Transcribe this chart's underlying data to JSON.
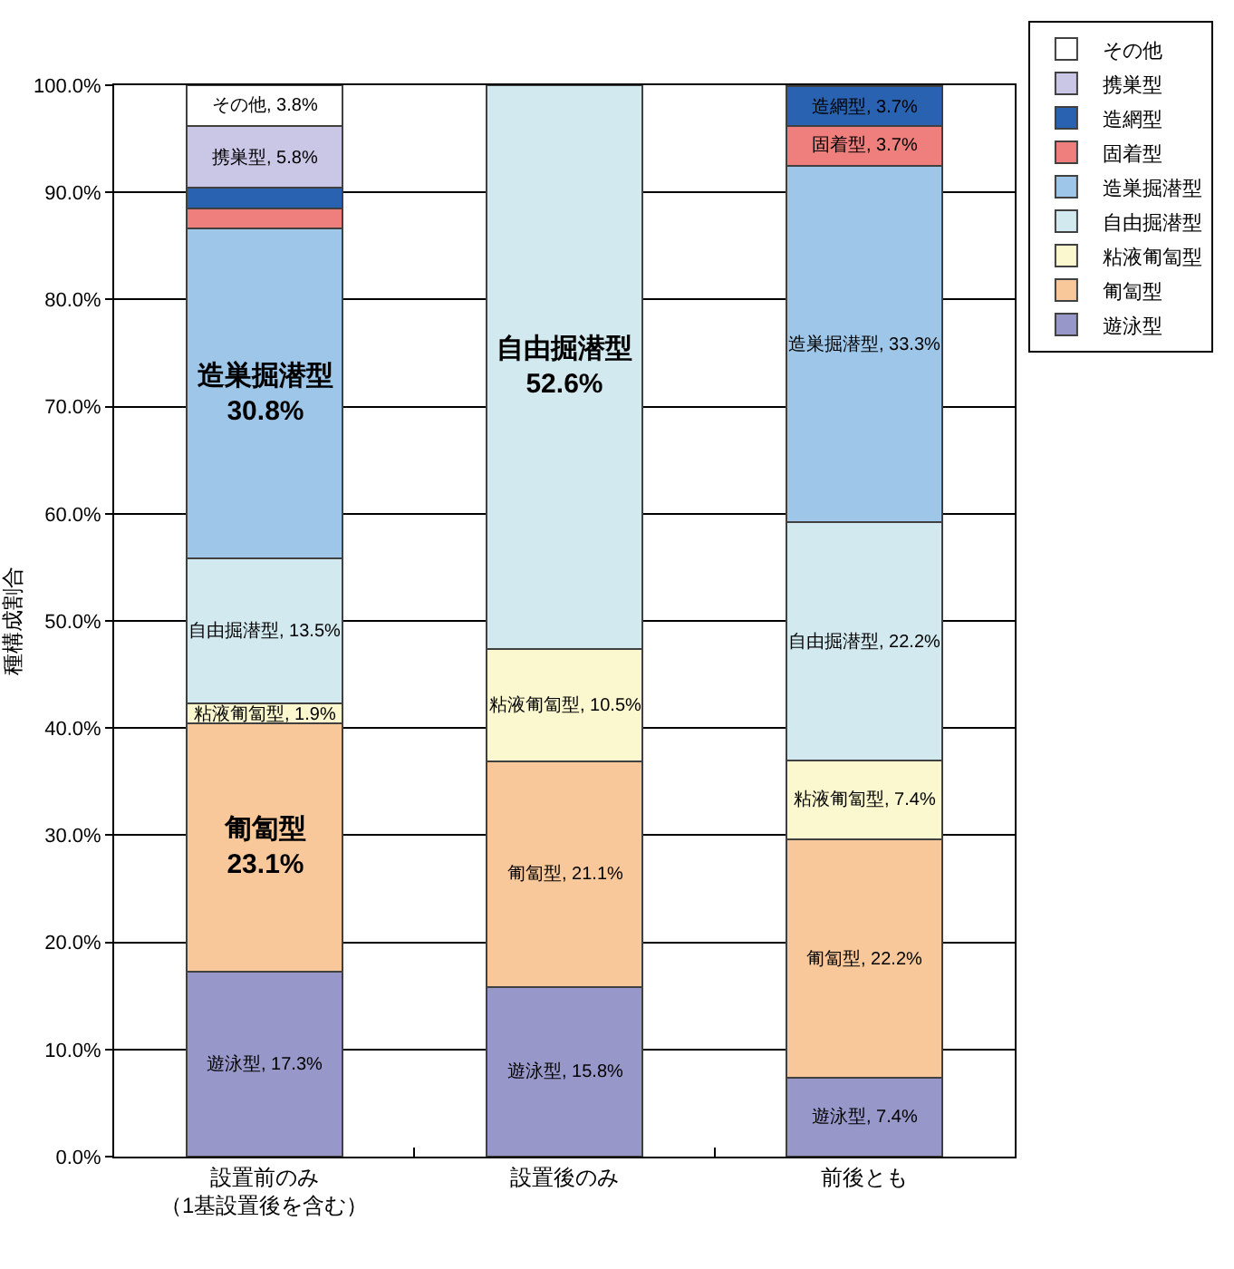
{
  "chart_data": {
    "type": "bar",
    "stacked": true,
    "ylabel": "種構成割合",
    "categories": [
      "設置前のみ（1基設置後を含む）",
      "設置後のみ",
      "前後とも"
    ],
    "ylim": [
      0,
      100
    ],
    "yticks": [
      {
        "value": 0,
        "label": "0.0%"
      },
      {
        "value": 10,
        "label": "10.0%"
      },
      {
        "value": 20,
        "label": "20.0%"
      },
      {
        "value": 30,
        "label": "30.0%"
      },
      {
        "value": 40,
        "label": "40.0%"
      },
      {
        "value": 50,
        "label": "50.0%"
      },
      {
        "value": 60,
        "label": "60.0%"
      },
      {
        "value": 70,
        "label": "70.0%"
      },
      {
        "value": 80,
        "label": "80.0%"
      },
      {
        "value": 90,
        "label": "90.0%"
      },
      {
        "value": 100,
        "label": "100.0%"
      }
    ],
    "grid": "y",
    "legend": "top right",
    "series": [
      {
        "name": "遊泳型",
        "color": "#9797c9",
        "values": [
          17.3,
          15.8,
          7.4
        ],
        "value_labels": [
          "遊泳型, 17.3%",
          "遊泳型, 15.8%",
          "遊泳型, 7.4%"
        ]
      },
      {
        "name": "匍匐型",
        "color": "#f8c89b",
        "values": [
          23.1,
          21.1,
          22.2
        ],
        "value_labels": [
          "匍匐型\n23.1%",
          "匍匐型, 21.1%",
          "匍匐型, 22.2%"
        ]
      },
      {
        "name": "粘液匍匐型",
        "color": "#fbf8cf",
        "values": [
          1.9,
          10.5,
          7.4
        ],
        "value_labels": [
          "粘液匍匐型, 1.9%",
          "粘液匍匐型, 10.5%",
          "粘液匍匐型, 7.4%"
        ]
      },
      {
        "name": "自由掘潜型",
        "color": "#d2e9ef",
        "values": [
          13.5,
          52.6,
          22.2
        ],
        "value_labels": [
          "自由掘潜型, 13.5%",
          "自由掘潜型\n52.6%",
          "自由掘潜型, 22.2%"
        ]
      },
      {
        "name": "造巣掘潜型",
        "color": "#9dc6e8",
        "values": [
          30.8,
          null,
          33.3
        ],
        "value_labels": [
          "造巣掘潜型\n30.8%",
          null,
          "造巣掘潜型, 33.3%"
        ]
      },
      {
        "name": "固着型",
        "color": "#ef7f7c",
        "values": [
          1.9,
          null,
          3.7
        ],
        "value_labels": [
          null,
          null,
          "固着型, 3.7%"
        ]
      },
      {
        "name": "造網型",
        "color": "#2862b0",
        "values": [
          1.9,
          null,
          3.7
        ],
        "value_labels": [
          null,
          null,
          "造網型, 3.7%"
        ]
      },
      {
        "name": "携巣型",
        "color": "#cac6e6",
        "values": [
          5.8,
          null,
          null
        ],
        "value_labels": [
          "携巣型, 5.8%",
          null,
          null
        ]
      },
      {
        "name": "その他",
        "color": "#ffffff",
        "values": [
          3.8,
          null,
          null
        ],
        "value_labels": [
          "その他, 3.8%",
          null,
          null
        ]
      }
    ]
  }
}
